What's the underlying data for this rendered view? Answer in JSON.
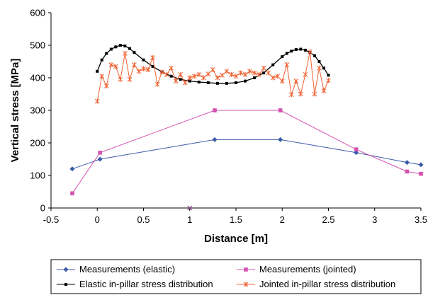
{
  "chart_data": {
    "type": "line",
    "xlabel": "Distance [m]",
    "ylabel": "Vertical stress [MPa]",
    "xlim": [
      -0.5,
      3.5
    ],
    "ylim": [
      0,
      600
    ],
    "xticks": [
      "-0.5",
      "0",
      "0.5",
      "1",
      "1.5",
      "2",
      "2.5",
      "3",
      "3.5"
    ],
    "yticks": [
      "0",
      "100",
      "200",
      "300",
      "400",
      "500",
      "600"
    ],
    "grid": false,
    "legend_position": "bottom",
    "series": [
      {
        "name": "Measurements (elastic)",
        "color": "#3a5ba8",
        "marker": "diamond",
        "x": [
          -0.27,
          0.03,
          1.27,
          1.98,
          2.8,
          3.35,
          3.5
        ],
        "y": [
          120,
          150,
          210,
          210,
          170,
          140,
          133
        ]
      },
      {
        "name": "Measurements (jointed)",
        "color": "#d452b0",
        "marker": "square",
        "x": [
          -0.27,
          0.03,
          1.27,
          1.98,
          2.8,
          3.35,
          3.5
        ],
        "y": [
          45,
          170,
          300,
          300,
          180,
          112,
          105
        ]
      },
      {
        "name": "Elastic in-pillar stress distribution",
        "color": "#000000",
        "marker": "dot",
        "x": [
          0.0,
          0.05,
          0.1,
          0.15,
          0.2,
          0.25,
          0.3,
          0.35,
          0.4,
          0.5,
          0.6,
          0.7,
          0.8,
          0.9,
          1.0,
          1.1,
          1.2,
          1.3,
          1.4,
          1.5,
          1.6,
          1.7,
          1.8,
          1.9,
          2.0,
          2.05,
          2.1,
          2.15,
          2.2,
          2.25,
          2.3,
          2.35,
          2.4,
          2.45,
          2.5
        ],
        "y": [
          420,
          455,
          475,
          488,
          495,
          500,
          498,
          490,
          478,
          455,
          435,
          418,
          405,
          395,
          390,
          387,
          385,
          383,
          383,
          385,
          390,
          400,
          415,
          440,
          465,
          475,
          482,
          487,
          488,
          485,
          478,
          468,
          450,
          430,
          408
        ]
      },
      {
        "name": "Jointed in-pillar stress distribution",
        "color": "#f06030",
        "marker": "star",
        "x": [
          0.0,
          0.05,
          0.1,
          0.15,
          0.2,
          0.25,
          0.3,
          0.35,
          0.4,
          0.45,
          0.5,
          0.55,
          0.6,
          0.65,
          0.7,
          0.75,
          0.8,
          0.85,
          0.9,
          0.95,
          1.0,
          1.05,
          1.1,
          1.15,
          1.2,
          1.25,
          1.3,
          1.35,
          1.4,
          1.45,
          1.5,
          1.55,
          1.6,
          1.65,
          1.7,
          1.75,
          1.8,
          1.85,
          1.9,
          1.95,
          2.0,
          2.05,
          2.1,
          2.15,
          2.2,
          2.25,
          2.3,
          2.35,
          2.4,
          2.45,
          2.5
        ],
        "y": [
          328,
          405,
          375,
          440,
          435,
          395,
          475,
          395,
          440,
          420,
          428,
          425,
          462,
          380,
          418,
          410,
          430,
          390,
          410,
          385,
          400,
          405,
          410,
          400,
          412,
          425,
          400,
          408,
          420,
          410,
          405,
          415,
          410,
          420,
          415,
          410,
          430,
          415,
          400,
          405,
          390,
          440,
          348,
          390,
          350,
          410,
          480,
          350,
          430,
          360,
          392
        ]
      }
    ],
    "annotations": [
      {
        "marker": "x",
        "color": "#8a3b8a",
        "x": 1.0,
        "y": 0
      }
    ]
  }
}
